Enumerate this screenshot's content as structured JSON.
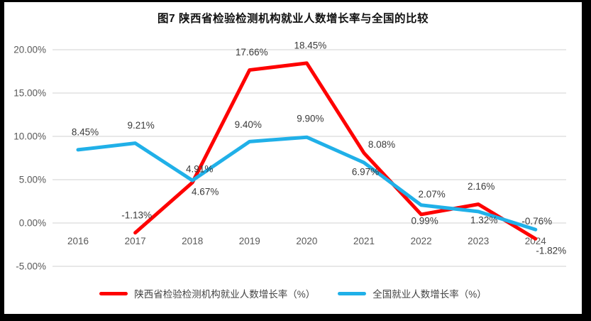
{
  "chart_data": {
    "type": "line",
    "title": "图7 陕西省检验检测机构就业人数增长率与全国的比较",
    "categories": [
      "2016",
      "2017",
      "2018",
      "2019",
      "2020",
      "2021",
      "2022",
      "2023",
      "2024"
    ],
    "series": [
      {
        "name": "陕西省检验检测机构就业人数增长率（%）",
        "color": "#FE0000",
        "values": [
          null,
          -1.13,
          4.67,
          17.66,
          18.45,
          8.08,
          0.99,
          2.16,
          -1.82
        ],
        "labels": [
          "",
          "-1.13%",
          "4.67%",
          "17.66%",
          "18.45%",
          "8.08%",
          "0.99%",
          "2.16%",
          "-1.82%"
        ],
        "label_offsets": [
          [
            0,
            0
          ],
          [
            2,
            -25
          ],
          [
            18,
            13
          ],
          [
            3,
            -25
          ],
          [
            5,
            -25
          ],
          [
            25,
            -12
          ],
          [
            5,
            9
          ],
          [
            4,
            -25
          ],
          [
            22,
            17
          ]
        ]
      },
      {
        "name": "全国就业人数增长率（%）",
        "color": "#20B0E8",
        "values": [
          8.45,
          9.21,
          4.91,
          9.4,
          9.9,
          6.97,
          2.07,
          1.32,
          -0.76
        ],
        "labels": [
          "8.45%",
          "9.21%",
          "4.91%",
          "9.40%",
          "9.90%",
          "6.97%",
          "2.07%",
          "1.32%",
          "-0.76%"
        ],
        "label_offsets": [
          [
            10,
            -25
          ],
          [
            8,
            -25
          ],
          [
            10,
            -16
          ],
          [
            -2,
            -24
          ],
          [
            5,
            -26
          ],
          [
            2,
            13
          ],
          [
            15,
            -15
          ],
          [
            8,
            12
          ],
          [
            2,
            -12
          ]
        ]
      }
    ],
    "y_axis": {
      "min": -5,
      "max": 20,
      "step": 5,
      "ticks": [
        {
          "value": 20,
          "label": "20.00%"
        },
        {
          "value": 15,
          "label": "15.00%"
        },
        {
          "value": 10,
          "label": "10.00%"
        },
        {
          "value": 5,
          "label": "5.00%"
        },
        {
          "value": 0,
          "label": "0.00%"
        },
        {
          "value": -5,
          "label": "-5.00%"
        }
      ]
    },
    "grid": true,
    "legend_position": "bottom",
    "colors": {
      "grid": "#D9D9D9",
      "axis_text": "#595959",
      "label_text": "#3A3A3A"
    }
  }
}
